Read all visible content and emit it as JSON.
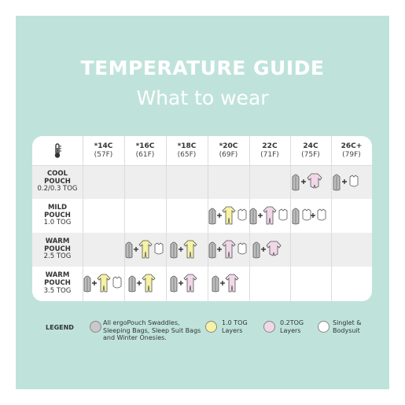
{
  "title": "TEMPERATURE GUIDE",
  "subtitle": "What to wear",
  "columns": [
    {
      "c": "*14C",
      "f": "(57F)"
    },
    {
      "c": "*16C",
      "f": "(61F)"
    },
    {
      "c": "*18C",
      "f": "(65F)"
    },
    {
      "c": "*20C",
      "f": "(69F)"
    },
    {
      "c": "22C",
      "f": "(71F)"
    },
    {
      "c": "24C",
      "f": "(75F)"
    },
    {
      "c": "26C+",
      "f": "(79F)"
    }
  ],
  "rows": [
    {
      "l1": "COOL",
      "l2": "POUCH",
      "tog": "0.2/0.3 TOG"
    },
    {
      "l1": "MILD",
      "l2": "POUCH",
      "tog": "1.0 TOG"
    },
    {
      "l1": "WARM",
      "l2": "POUCH",
      "tog": "2.5 TOG"
    },
    {
      "l1": "WARM",
      "l2": "POUCH",
      "tog": "3.5 TOG"
    }
  ],
  "legend": {
    "label": "LEGEND",
    "items": [
      {
        "text": "All ergoPouch Swaddles, Sleeping Bags, Sleep Suit Bags and Winter Onesies.",
        "color": "#c9c9c9"
      },
      {
        "text": "1.0 TOG Layers",
        "color": "#f6f2a6"
      },
      {
        "text": "0.2TOG Layers",
        "color": "#f1d7e8"
      },
      {
        "text": "Singlet & Bodysuit",
        "color": "#ffffff"
      }
    ]
  },
  "colors": {
    "background": "#bfe3da",
    "grey": "#bdbdbd",
    "yellow": "#f6f2a6",
    "pink": "#f1d7e8"
  },
  "icons": {
    "header": "thermometer-icon",
    "bag": "sleeping-bag-icon",
    "suit": "onesie-icon",
    "romper": "short-romper-icon",
    "singlet": "singlet-icon"
  }
}
